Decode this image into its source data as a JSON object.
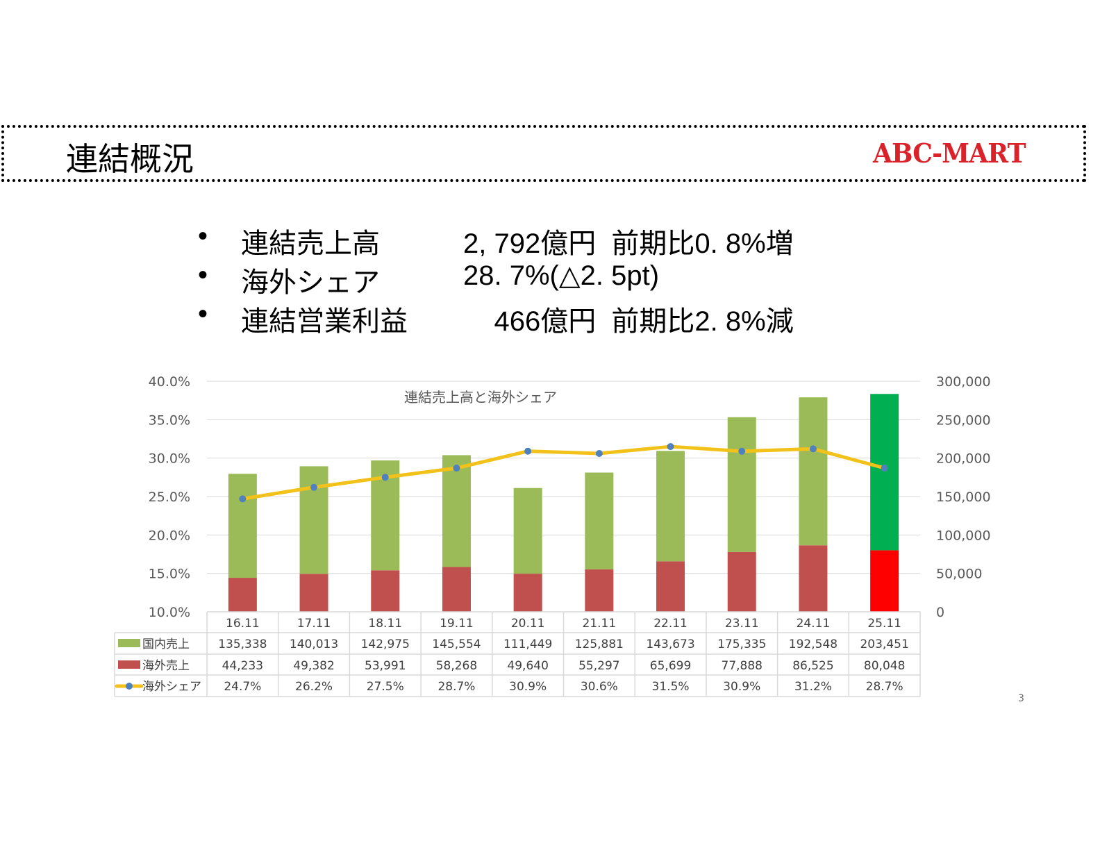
{
  "header": {
    "title": "連結概況",
    "logo_text": "ABC-MART"
  },
  "bullets": [
    {
      "label": "連結売上高",
      "value": "2, 792億円  前期比0. 8%増"
    },
    {
      "label": "海外シェア",
      "value": "28. 7%(△2. 5pt)"
    },
    {
      "label": "連結営業利益",
      "value": "    466億円  前期比2. 8%減"
    }
  ],
  "page_number": "3",
  "chart_data": {
    "type": "bar",
    "title": "連結売上高と海外シェア",
    "categories": [
      "16.11",
      "17.11",
      "18.11",
      "19.11",
      "20.11",
      "21.11",
      "22.11",
      "23.11",
      "24.11",
      "25.11"
    ],
    "series": [
      {
        "name": "国内売上",
        "kind": "stacked-bar",
        "axis": "right",
        "color": "#9bbb59",
        "highlight_color": "#00b050",
        "values": [
          135338,
          140013,
          142975,
          145554,
          111449,
          125881,
          143673,
          175335,
          192548,
          203451
        ],
        "labels": [
          "135,338",
          "140,013",
          "142,975",
          "145,554",
          "111,449",
          "125,881",
          "143,673",
          "175,335",
          "192,548",
          "203,451"
        ]
      },
      {
        "name": "海外売上",
        "kind": "stacked-bar",
        "axis": "right",
        "color": "#c0504d",
        "highlight_color": "#ff0000",
        "values": [
          44233,
          49382,
          53991,
          58268,
          49640,
          55297,
          65699,
          77888,
          86525,
          80048
        ],
        "labels": [
          "44,233",
          "49,382",
          "53,991",
          "58,268",
          "49,640",
          "55,297",
          "65,699",
          "77,888",
          "86,525",
          "80,048"
        ]
      },
      {
        "name": "海外シェア",
        "kind": "line",
        "axis": "left",
        "color": "#f2c21b",
        "marker_color": "#4f81bd",
        "values": [
          24.7,
          26.2,
          27.5,
          28.7,
          30.9,
          30.6,
          31.5,
          30.9,
          31.2,
          28.7
        ],
        "labels": [
          "24.7%",
          "26.2%",
          "27.5%",
          "28.7%",
          "30.9%",
          "30.6%",
          "31.5%",
          "30.9%",
          "31.2%",
          "28.7%"
        ]
      }
    ],
    "left_axis": {
      "ylim": [
        10,
        40
      ],
      "ticks": [
        "10.0%",
        "15.0%",
        "20.0%",
        "25.0%",
        "30.0%",
        "35.0%",
        "40.0%"
      ]
    },
    "right_axis": {
      "ylim": [
        0,
        300000
      ],
      "ticks": [
        "0",
        "50,000",
        "100,000",
        "150,000",
        "200,000",
        "250,000",
        "300,000"
      ]
    },
    "highlighted_category": "25.11",
    "grid": true,
    "legend": "data-table"
  }
}
